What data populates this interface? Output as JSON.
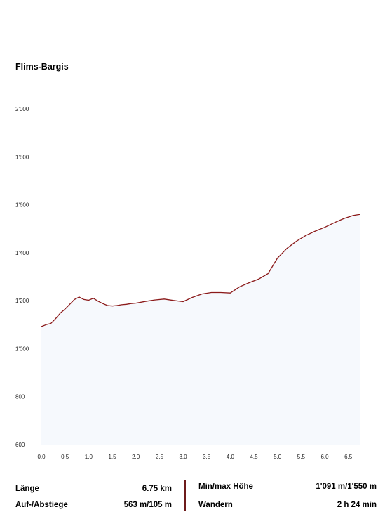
{
  "chart_data": {
    "type": "area",
    "title": "Flims-Bargis",
    "xlabel": "",
    "ylabel": "",
    "xlim": [
      0,
      6.75
    ],
    "ylim": [
      600,
      2000
    ],
    "x_ticks": [
      "0.0",
      "0.5",
      "1.0",
      "1.5",
      "2.0",
      "2.5",
      "3.0",
      "3.5",
      "4.0",
      "4.5",
      "5.0",
      "5.5",
      "6.0",
      "6.5"
    ],
    "y_ticks": [
      "600",
      "800",
      "1'000",
      "1'200",
      "1'400",
      "1'600",
      "1'800",
      "2'000"
    ],
    "grid": false,
    "line_color": "#8b1a1a",
    "fill_color": "#f6f9fd",
    "x": [
      0.0,
      0.1,
      0.2,
      0.3,
      0.4,
      0.5,
      0.6,
      0.7,
      0.8,
      0.9,
      1.0,
      1.1,
      1.2,
      1.3,
      1.4,
      1.5,
      1.6,
      1.7,
      1.8,
      1.9,
      2.0,
      2.2,
      2.4,
      2.6,
      2.8,
      3.0,
      3.2,
      3.4,
      3.6,
      3.8,
      4.0,
      4.2,
      4.4,
      4.6,
      4.8,
      5.0,
      5.2,
      5.4,
      5.6,
      5.8,
      6.0,
      6.2,
      6.4,
      6.6,
      6.75
    ],
    "y": [
      1092,
      1100,
      1105,
      1125,
      1148,
      1165,
      1185,
      1205,
      1215,
      1205,
      1202,
      1210,
      1198,
      1188,
      1180,
      1178,
      1180,
      1183,
      1185,
      1188,
      1190,
      1197,
      1203,
      1207,
      1201,
      1196,
      1214,
      1228,
      1234,
      1234,
      1232,
      1258,
      1275,
      1290,
      1313,
      1378,
      1418,
      1448,
      1472,
      1490,
      1506,
      1525,
      1542,
      1555,
      1560
    ]
  },
  "stats": {
    "length_label": "Länge",
    "length_value": "6.75 km",
    "ascent_label": "Auf-/Abstiege",
    "ascent_value": "563 m/105 m",
    "minmax_label": "Min/max Höhe",
    "minmax_value": "1'091 m/1'550 m",
    "hike_label": "Wandern",
    "hike_value": "2 h 24 min"
  }
}
